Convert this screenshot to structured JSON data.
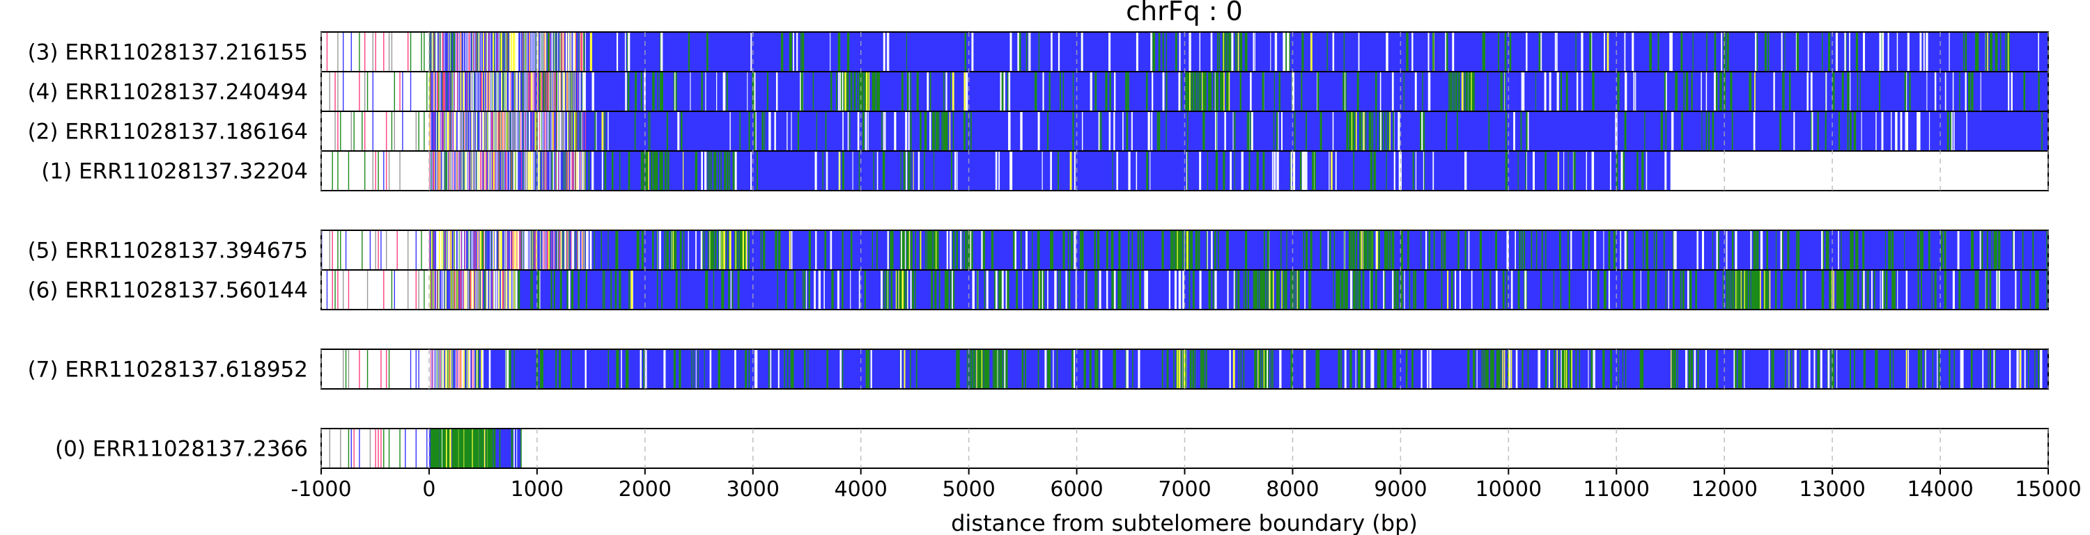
{
  "chart_data": {
    "type": "heatmap",
    "title": "chrFq : 0",
    "xlabel": "distance from subtelomere boundary (bp)",
    "ylabel": "",
    "xlim": [
      -1000,
      15000
    ],
    "xticks": [
      -1000,
      0,
      1000,
      2000,
      3000,
      4000,
      5000,
      6000,
      7000,
      8000,
      9000,
      10000,
      11000,
      12000,
      13000,
      14000,
      15000
    ],
    "grid": "vertical dashed",
    "colors": {
      "blue": "#3535ff",
      "green": "#1b8a1b",
      "yellow": "#ffff3a",
      "pink": "#ff3f7f",
      "light": "#f4f4ff",
      "white": "#ffffff",
      "frame": "#000000"
    },
    "groups": [
      {
        "reads": [
          {
            "label": "(3) ERR11028137.216155",
            "start": -1000,
            "end": 15000,
            "blue_start": 1450,
            "greenness": 0.25
          },
          {
            "label": "(4) ERR11028137.240494",
            "start": -1000,
            "end": 15000,
            "blue_start": 1450,
            "greenness": 0.45
          },
          {
            "label": "(2) ERR11028137.186164",
            "start": -1000,
            "end": 15000,
            "blue_start": 1450,
            "greenness": 0.35
          },
          {
            "label": "(1) ERR11028137.32204",
            "start": -900,
            "end": 11500,
            "blue_start": 1450,
            "greenness": 0.3
          }
        ]
      },
      {
        "reads": [
          {
            "label": "(5) ERR11028137.394675",
            "start": -1000,
            "end": 15000,
            "blue_start": 1450,
            "greenness": 0.8
          },
          {
            "label": "(6) ERR11028137.560144",
            "start": -1000,
            "end": 15000,
            "blue_start": 800,
            "greenness": 0.75
          }
        ]
      },
      {
        "reads": [
          {
            "label": "(7) ERR11028137.618952",
            "start": -1000,
            "end": 15000,
            "blue_start": 500,
            "greenness": 0.7
          }
        ]
      },
      {
        "reads": [
          {
            "label": "(0) ERR11028137.2366",
            "start": -950,
            "end": 850,
            "blue_start": 0,
            "greenness": 0.9
          }
        ]
      }
    ]
  }
}
